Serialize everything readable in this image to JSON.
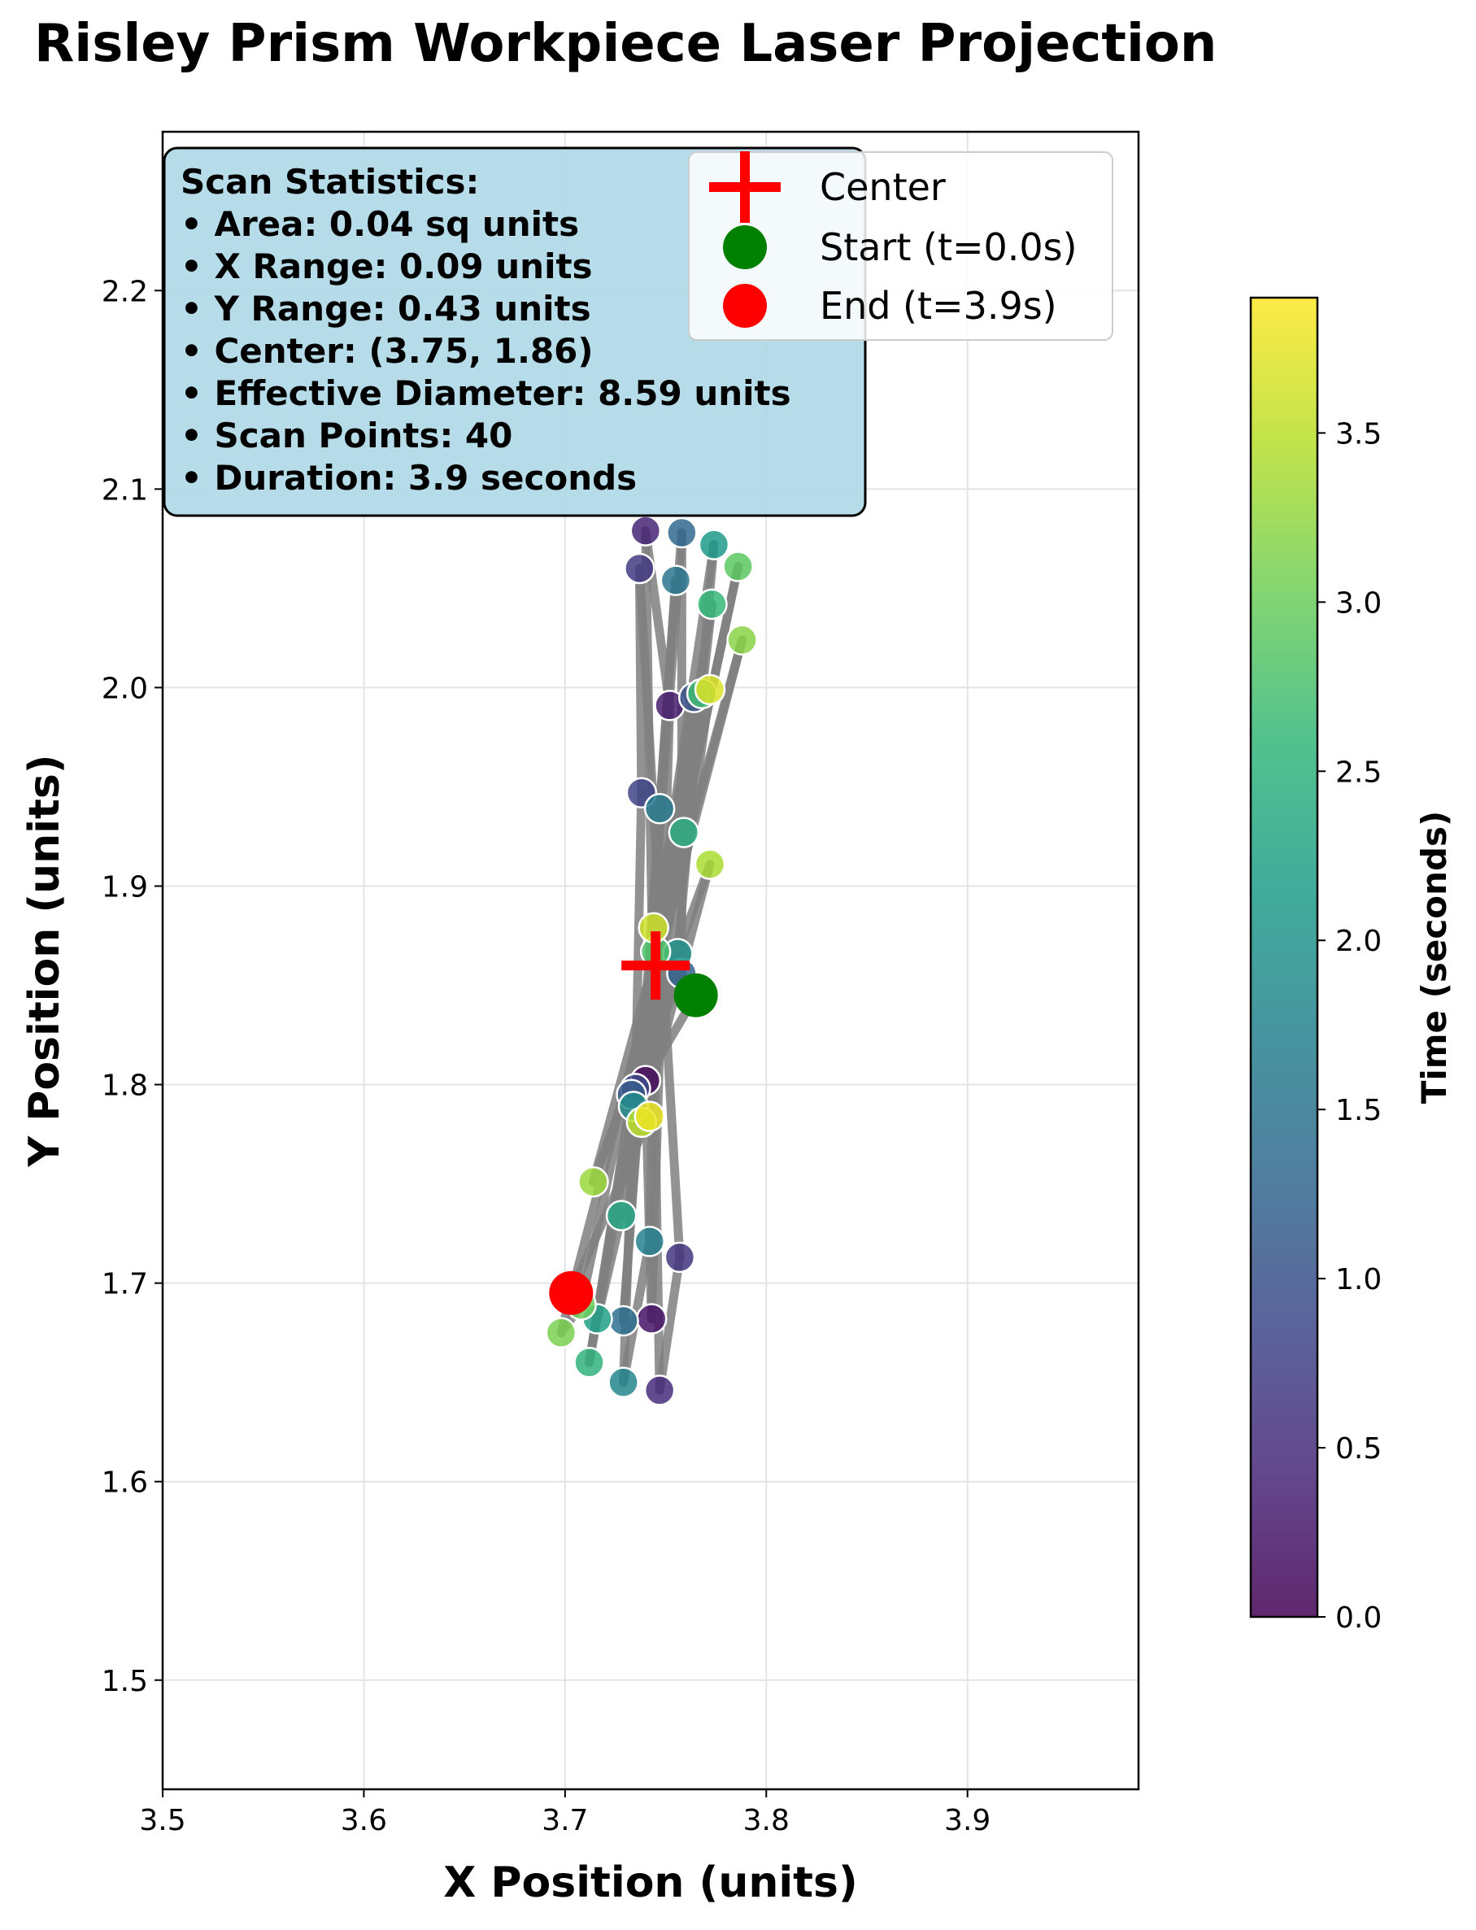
{
  "chart_data": {
    "type": "scatter",
    "title": "Risley Prism Workpiece Laser Projection",
    "xlabel": "X Position (units)",
    "ylabel": "Y Position (units)",
    "xlim": [
      3.5,
      3.985
    ],
    "ylim": [
      1.445,
      2.28
    ],
    "x_ticks": [
      3.5,
      3.6,
      3.7,
      3.8,
      3.9
    ],
    "x_tick_labels": [
      "3.5",
      "3.6",
      "3.7",
      "3.8",
      "3.9"
    ],
    "y_ticks": [
      1.5,
      1.6,
      1.7,
      1.8,
      1.9,
      2.0,
      2.1,
      2.2
    ],
    "y_tick_labels": [
      "1.5",
      "1.6",
      "1.7",
      "1.8",
      "1.9",
      "2.0",
      "2.1",
      "2.2"
    ],
    "grid": true,
    "legend_position": "top-right",
    "legend": [
      {
        "label": "Center",
        "marker": "plus",
        "color": "#ff0000"
      },
      {
        "label": "Start (t=0.0s)",
        "marker": "circle",
        "color": "#008000"
      },
      {
        "label": "End (t=3.9s)",
        "marker": "circle",
        "color": "#ff0000"
      }
    ],
    "stats_box": {
      "heading": "Scan Statistics:",
      "lines": [
        "• Area: 0.04 sq units",
        "• X Range: 0.09 units",
        "• Y Range: 0.43 units",
        "• Center: (3.75, 1.86)",
        "• Effective Diameter: 8.59 units",
        "• Scan Points: 40",
        "• Duration: 3.9 seconds"
      ],
      "background": "#add8e6"
    },
    "center": {
      "x": 3.745,
      "y": 1.86
    },
    "start": {
      "x": 3.765,
      "y": 1.845,
      "t": 0.0
    },
    "end": {
      "x": 3.703,
      "y": 1.695,
      "t": 3.9
    },
    "path_color": "#808080",
    "points": [
      {
        "t": 0.0,
        "x": 3.765,
        "y": 1.845
      },
      {
        "t": 0.1,
        "x": 3.74,
        "y": 1.802
      },
      {
        "t": 0.2,
        "x": 3.743,
        "y": 1.682
      },
      {
        "t": 0.3,
        "x": 3.752,
        "y": 1.991
      },
      {
        "t": 0.4,
        "x": 3.74,
        "y": 2.079
      },
      {
        "t": 0.5,
        "x": 3.747,
        "y": 1.646
      },
      {
        "t": 0.6,
        "x": 3.757,
        "y": 1.713
      },
      {
        "t": 0.7,
        "x": 3.737,
        "y": 2.06
      },
      {
        "t": 0.8,
        "x": 3.738,
        "y": 1.947
      },
      {
        "t": 0.9,
        "x": 3.735,
        "y": 1.798
      },
      {
        "t": 1.0,
        "x": 3.764,
        "y": 1.995
      },
      {
        "t": 1.1,
        "x": 3.733,
        "y": 1.795
      },
      {
        "t": 1.2,
        "x": 3.758,
        "y": 1.856
      },
      {
        "t": 1.3,
        "x": 3.758,
        "y": 2.078
      },
      {
        "t": 1.4,
        "x": 3.729,
        "y": 1.681
      },
      {
        "t": 1.5,
        "x": 3.755,
        "y": 2.054
      },
      {
        "t": 1.6,
        "x": 3.747,
        "y": 1.939
      },
      {
        "t": 1.7,
        "x": 3.742,
        "y": 1.721
      },
      {
        "t": 1.8,
        "x": 3.729,
        "y": 1.65
      },
      {
        "t": 1.9,
        "x": 3.734,
        "y": 1.789
      },
      {
        "t": 2.0,
        "x": 3.756,
        "y": 1.866
      },
      {
        "t": 2.1,
        "x": 3.774,
        "y": 2.072
      },
      {
        "t": 2.2,
        "x": 3.716,
        "y": 1.682
      },
      {
        "t": 2.3,
        "x": 3.728,
        "y": 1.734
      },
      {
        "t": 2.4,
        "x": 3.759,
        "y": 1.927
      },
      {
        "t": 2.5,
        "x": 3.712,
        "y": 1.66
      },
      {
        "t": 2.6,
        "x": 3.773,
        "y": 2.042
      },
      {
        "t": 2.7,
        "x": 3.768,
        "y": 1.997
      },
      {
        "t": 2.8,
        "x": 3.745,
        "y": 1.867
      },
      {
        "t": 2.9,
        "x": 3.786,
        "y": 2.061
      },
      {
        "t": 3.0,
        "x": 3.708,
        "y": 1.689
      },
      {
        "t": 3.1,
        "x": 3.698,
        "y": 1.675
      },
      {
        "t": 3.2,
        "x": 3.788,
        "y": 2.024
      },
      {
        "t": 3.3,
        "x": 3.714,
        "y": 1.751
      },
      {
        "t": 3.4,
        "x": 3.772,
        "y": 1.911
      },
      {
        "t": 3.5,
        "x": 3.738,
        "y": 1.781
      },
      {
        "t": 3.6,
        "x": 3.744,
        "y": 1.879
      },
      {
        "t": 3.7,
        "x": 3.772,
        "y": 1.999
      },
      {
        "t": 3.8,
        "x": 3.742,
        "y": 1.784
      },
      {
        "t": 3.9,
        "x": 3.703,
        "y": 1.695
      }
    ],
    "colorbar": {
      "label": "Time (seconds)",
      "range": [
        0.0,
        3.9
      ],
      "ticks": [
        0.0,
        0.5,
        1.0,
        1.5,
        2.0,
        2.5,
        3.0,
        3.5
      ],
      "tick_labels": [
        "0.0",
        "0.5",
        "1.0",
        "1.5",
        "2.0",
        "2.5",
        "3.0",
        "3.5"
      ],
      "colormap": "viridis",
      "stops": [
        "#440154",
        "#482878",
        "#3e4989",
        "#31688e",
        "#26828e",
        "#1f9e89",
        "#35b779",
        "#6ece58",
        "#b5de2b",
        "#fde725"
      ]
    }
  }
}
